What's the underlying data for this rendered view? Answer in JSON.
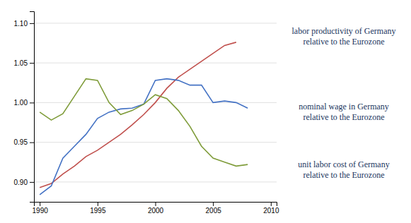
{
  "chart_data": {
    "type": "line",
    "series": [
      {
        "color": "#c0504d",
        "x": [
          1990,
          1991,
          1992,
          1993,
          1994,
          1995,
          1996,
          1997,
          1998,
          1999,
          2000,
          2001,
          2002,
          2003,
          2004,
          2005,
          2006,
          2007
        ],
        "values": [
          0.893,
          0.898,
          0.91,
          0.92,
          0.932,
          0.94,
          0.95,
          0.96,
          0.972,
          0.985,
          1.0,
          1.018,
          1.032,
          1.042,
          1.052,
          1.062,
          1.072,
          1.076
        ]
      },
      {
        "color": "#4472c4",
        "x": [
          1990,
          1991,
          1992,
          1993,
          1994,
          1995,
          1996,
          1997,
          1998,
          1999,
          2000,
          2001,
          2002,
          2003,
          2004,
          2005,
          2006,
          2007,
          2008
        ],
        "values": [
          0.884,
          0.895,
          0.93,
          0.945,
          0.96,
          0.98,
          0.988,
          0.992,
          0.993,
          0.998,
          1.028,
          1.03,
          1.028,
          1.022,
          1.022,
          1.0,
          1.002,
          1.0,
          0.993
        ]
      },
      {
        "color": "#7f9c3a",
        "x": [
          1990,
          1991,
          1992,
          1993,
          1994,
          1995,
          1996,
          1997,
          1998,
          1999,
          2000,
          2001,
          2002,
          2003,
          2004,
          2005,
          2006,
          2007,
          2008
        ],
        "values": [
          0.988,
          0.978,
          0.986,
          1.008,
          1.03,
          1.028,
          1.0,
          0.985,
          0.99,
          0.998,
          1.01,
          1.005,
          0.99,
          0.97,
          0.945,
          0.93,
          0.925,
          0.92,
          0.922
        ]
      }
    ],
    "xlim": [
      1989.5,
      2010.5
    ],
    "xticks": [
      1990,
      1995,
      2000,
      2005,
      2010
    ],
    "ylim": [
      0.875,
      1.115
    ],
    "yticks": [
      {
        "value": 0.9,
        "label": "0.90"
      },
      0.95,
      {
        "value": 1.0,
        "label": "1.00"
      },
      1.05,
      {
        "value": 1.1,
        "label": "1.10"
      }
    ],
    "grid": true,
    "annotations": [
      "labor productivity of Germany",
      "relative to the Eurozone",
      "nominal wage in Germany",
      "relative to the Eurozone",
      "unit labor cost of Germany",
      "relative to the Eurozone"
    ]
  }
}
